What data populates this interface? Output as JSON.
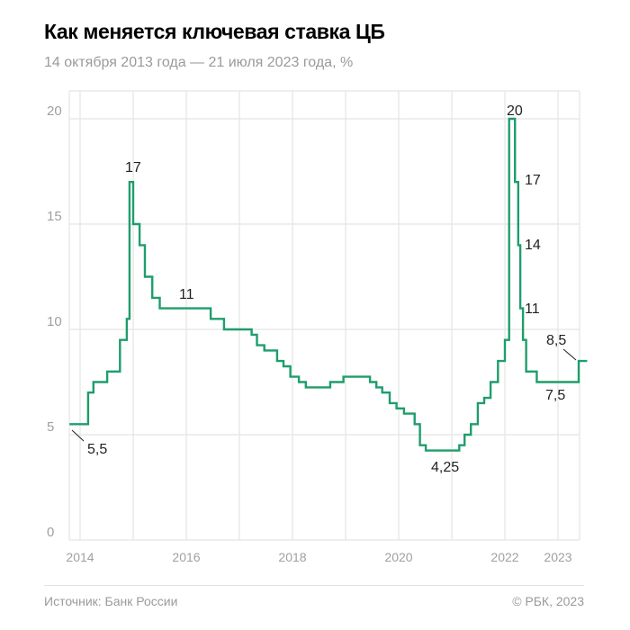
{
  "header": {
    "title": "Как меняется ключевая ставка ЦБ",
    "subtitle": "14 октября 2013 года — 21 июля 2023 года, %"
  },
  "footer": {
    "source": "Источник: Банк России",
    "copyright": "© РБК, 2023"
  },
  "colors": {
    "line": "#1f9d6c",
    "grid": "#e4e4e4",
    "tick": "#a0a0a0",
    "annotation": "#222222"
  },
  "chart_data": {
    "type": "line",
    "step": true,
    "title": "Как меняется ключевая ставка ЦБ",
    "subtitle": "14 октября 2013 года — 21 июля 2023 года, %",
    "xlabel": "",
    "ylabel": "%",
    "xlim": [
      2013.8,
      2023.55
    ],
    "ylim": [
      0,
      21.5
    ],
    "yticks": [
      0,
      5,
      10,
      15,
      20
    ],
    "xticks": [
      2014,
      2016,
      2018,
      2020,
      2022,
      2023
    ],
    "x_gridlines": [
      2014,
      2015,
      2016,
      2017,
      2018,
      2019,
      2020,
      2021,
      2022,
      2023
    ],
    "grid": true,
    "legend": null,
    "series": [
      {
        "name": "Ключевая ставка ЦБ",
        "points": [
          [
            2013.8,
            5.5
          ],
          [
            2014.15,
            7.0
          ],
          [
            2014.25,
            7.5
          ],
          [
            2014.51,
            8.0
          ],
          [
            2014.75,
            9.5
          ],
          [
            2014.88,
            10.5
          ],
          [
            2014.93,
            17.0
          ],
          [
            2015.0,
            15.0
          ],
          [
            2015.12,
            14.0
          ],
          [
            2015.22,
            12.5
          ],
          [
            2015.36,
            11.5
          ],
          [
            2015.5,
            11.0
          ],
          [
            2016.46,
            10.5
          ],
          [
            2016.71,
            10.0
          ],
          [
            2017.23,
            9.75
          ],
          [
            2017.33,
            9.25
          ],
          [
            2017.47,
            9.0
          ],
          [
            2017.71,
            8.5
          ],
          [
            2017.83,
            8.25
          ],
          [
            2017.96,
            7.75
          ],
          [
            2018.12,
            7.5
          ],
          [
            2018.25,
            7.25
          ],
          [
            2018.71,
            7.5
          ],
          [
            2018.96,
            7.75
          ],
          [
            2019.46,
            7.5
          ],
          [
            2019.58,
            7.25
          ],
          [
            2019.69,
            7.0
          ],
          [
            2019.83,
            6.5
          ],
          [
            2019.96,
            6.25
          ],
          [
            2020.1,
            6.0
          ],
          [
            2020.3,
            5.5
          ],
          [
            2020.4,
            4.5
          ],
          [
            2020.51,
            4.25
          ],
          [
            2021.14,
            4.5
          ],
          [
            2021.24,
            5.0
          ],
          [
            2021.36,
            5.5
          ],
          [
            2021.49,
            6.5
          ],
          [
            2021.61,
            6.75
          ],
          [
            2021.73,
            7.5
          ],
          [
            2021.87,
            8.5
          ],
          [
            2022.0,
            9.5
          ],
          [
            2022.08,
            20.0
          ],
          [
            2022.19,
            17.0
          ],
          [
            2022.25,
            14.0
          ],
          [
            2022.29,
            11.0
          ],
          [
            2022.34,
            9.5
          ],
          [
            2022.4,
            8.0
          ],
          [
            2022.6,
            7.5
          ],
          [
            2023.39,
            8.5
          ],
          [
            2023.55,
            8.5
          ]
        ]
      }
    ],
    "annotations": [
      {
        "text": "5,5",
        "x": 2013.8,
        "y": 5.5
      },
      {
        "text": "17",
        "x": 2014.93,
        "y": 17
      },
      {
        "text": "11",
        "x": 2015.5,
        "y": 11
      },
      {
        "text": "4,25",
        "x": 2020.51,
        "y": 4.25
      },
      {
        "text": "20",
        "x": 2022.08,
        "y": 20
      },
      {
        "text": "17",
        "x": 2022.19,
        "y": 17
      },
      {
        "text": "14",
        "x": 2022.25,
        "y": 14
      },
      {
        "text": "11",
        "x": 2022.29,
        "y": 11
      },
      {
        "text": "7,5",
        "x": 2022.6,
        "y": 7.5
      },
      {
        "text": "8,5",
        "x": 2023.39,
        "y": 8.5
      }
    ]
  }
}
